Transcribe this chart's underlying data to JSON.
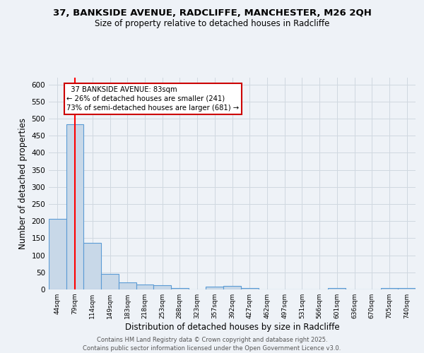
{
  "title": "37, BANKSIDE AVENUE, RADCLIFFE, MANCHESTER, M26 2QH",
  "subtitle": "Size of property relative to detached houses in Radcliffe",
  "xlabel": "Distribution of detached houses by size in Radcliffe",
  "ylabel": "Number of detached properties",
  "bin_labels": [
    "44sqm",
    "79sqm",
    "114sqm",
    "149sqm",
    "183sqm",
    "218sqm",
    "253sqm",
    "288sqm",
    "323sqm",
    "357sqm",
    "392sqm",
    "427sqm",
    "462sqm",
    "497sqm",
    "531sqm",
    "566sqm",
    "601sqm",
    "636sqm",
    "670sqm",
    "705sqm",
    "740sqm"
  ],
  "bar_heights": [
    207,
    483,
    137,
    45,
    21,
    14,
    12,
    4,
    0,
    9,
    10,
    4,
    0,
    0,
    0,
    0,
    4,
    0,
    0,
    4,
    4
  ],
  "bar_color": "#c8d8e8",
  "bar_edge_color": "#5b9bd5",
  "grid_color": "#d0d8e0",
  "background_color": "#eef2f7",
  "red_line_x": 1.0,
  "annotation_text": "  37 BANKSIDE AVENUE: 83sqm\n← 26% of detached houses are smaller (241)\n73% of semi-detached houses are larger (681) →",
  "annotation_box_color": "#ffffff",
  "annotation_box_edge": "#cc0000",
  "footer": "Contains HM Land Registry data © Crown copyright and database right 2025.\nContains public sector information licensed under the Open Government Licence v3.0.",
  "ylim": [
    0,
    620
  ],
  "yticks": [
    0,
    50,
    100,
    150,
    200,
    250,
    300,
    350,
    400,
    450,
    500,
    550,
    600
  ]
}
